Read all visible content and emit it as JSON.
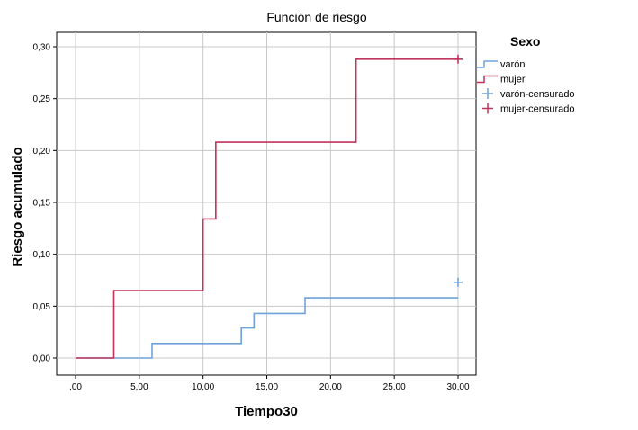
{
  "chart_data": {
    "type": "line",
    "title": "Función de riesgo",
    "xlabel": "Tiempo30",
    "ylabel": "Riesgo acumulado",
    "xlim": [
      0,
      30
    ],
    "ylim": [
      0,
      0.3
    ],
    "x_ticks": [
      0,
      5,
      10,
      15,
      20,
      25,
      30
    ],
    "x_tick_labels": [
      ",00",
      "5,00",
      "10,00",
      "15,00",
      "20,00",
      "25,00",
      "30,00"
    ],
    "y_ticks": [
      0,
      0.05,
      0.1,
      0.15,
      0.2,
      0.25,
      0.3
    ],
    "y_tick_labels": [
      "0,00",
      "0,05",
      "0,10",
      "0,15",
      "0,20",
      "0,25",
      "0,30"
    ],
    "grid": true,
    "legend": {
      "title": "Sexo",
      "position": "right",
      "entries": [
        "varón",
        "mujer",
        "varón-censurado",
        "mujer-censurado"
      ]
    },
    "series": [
      {
        "name": "varón",
        "color": "#6fa3d8",
        "step": true,
        "x": [
          0,
          6,
          13,
          14,
          18,
          30
        ],
        "y": [
          0,
          0.014,
          0.029,
          0.043,
          0.058,
          0.058
        ]
      },
      {
        "name": "mujer",
        "color": "#c0345a",
        "step": true,
        "x": [
          0,
          3,
          10,
          11,
          22,
          30
        ],
        "y": [
          0,
          0.065,
          0.134,
          0.208,
          0.288,
          0.288
        ]
      }
    ],
    "censored": [
      {
        "name": "varón-censurado",
        "color": "#6fa3d8",
        "x": 30,
        "y": 0.073
      },
      {
        "name": "mujer-censurado",
        "color": "#c0345a",
        "x": 30,
        "y": 0.288
      }
    ]
  }
}
